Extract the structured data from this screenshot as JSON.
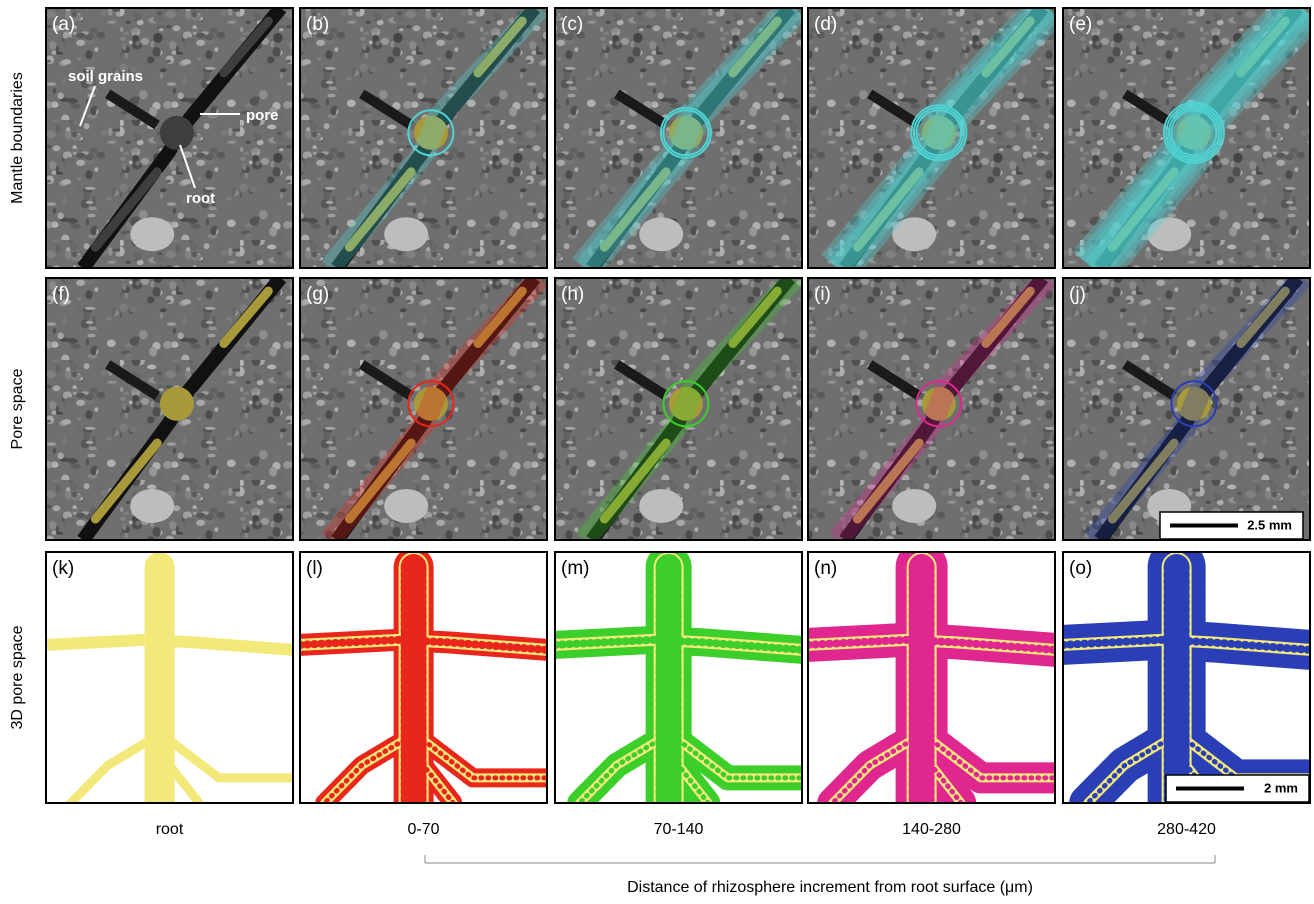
{
  "row_labels": [
    "Mantle boundaries",
    "Pore space",
    "3D pore space"
  ],
  "panels": [
    {
      "label": "(a)"
    },
    {
      "label": "(b)"
    },
    {
      "label": "(c)"
    },
    {
      "label": "(d)"
    },
    {
      "label": "(e)"
    },
    {
      "label": "(f)"
    },
    {
      "label": "(g)"
    },
    {
      "label": "(h)"
    },
    {
      "label": "(i)"
    },
    {
      "label": "(j)"
    },
    {
      "label": "(k)"
    },
    {
      "label": "(l)"
    },
    {
      "label": "(m)"
    },
    {
      "label": "(n)"
    },
    {
      "label": "(o)"
    }
  ],
  "annotations": {
    "soil": "soil grains",
    "pore": "pore",
    "root": "root"
  },
  "scale_bars": {
    "pore_space": "2.5 mm",
    "3d": "2 mm"
  },
  "column_labels": [
    "root",
    "0-70",
    "70-140",
    "140-280",
    "280-420"
  ],
  "caption": "Distance of rhizosphere increment from root surface (μm)"
}
